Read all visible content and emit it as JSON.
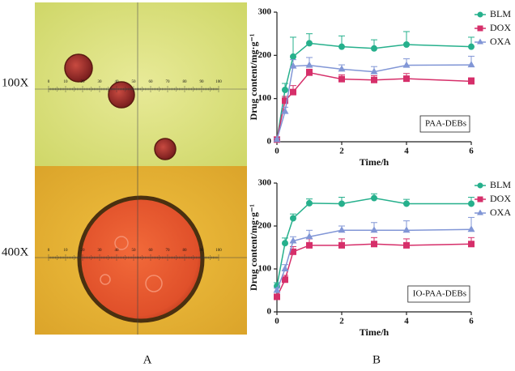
{
  "figure": {
    "magnifications": [
      "100X",
      "400X"
    ],
    "panel_labels": [
      "A",
      "B"
    ],
    "ruler_labels": [
      "0",
      "10",
      "20",
      "30",
      "40",
      "50",
      "60",
      "70",
      "80",
      "90",
      "100"
    ]
  },
  "chart_data": [
    {
      "type": "line",
      "annotation": "PAA-DEBs",
      "xlabel": "Time/h",
      "ylabel": "Drug content/mg·g⁻¹",
      "x": [
        0,
        0.25,
        0.5,
        1,
        2,
        3,
        4,
        6
      ],
      "xlim": [
        0,
        6
      ],
      "xticks": [
        0,
        2,
        4,
        6
      ],
      "ylim": [
        0,
        300
      ],
      "yticks": [
        0,
        100,
        200,
        300
      ],
      "legend": "upper right",
      "series": [
        {
          "name": "BLM",
          "color": "#26b08c",
          "marker": "circle",
          "values": [
            5,
            120,
            197,
            228,
            220,
            216,
            225,
            220
          ],
          "errors": [
            3,
            15,
            45,
            22,
            25,
            20,
            30,
            22
          ]
        },
        {
          "name": "DOX",
          "color": "#d62f6a",
          "marker": "square",
          "values": [
            5,
            95,
            115,
            160,
            145,
            143,
            146,
            140
          ],
          "errors": [
            3,
            10,
            15,
            8,
            10,
            10,
            12,
            8
          ]
        },
        {
          "name": "OXA",
          "color": "#8196d6",
          "marker": "triangle",
          "values": [
            5,
            70,
            175,
            177,
            168,
            162,
            177,
            178
          ],
          "errors": [
            3,
            10,
            15,
            18,
            10,
            12,
            15,
            20
          ]
        }
      ]
    },
    {
      "type": "line",
      "annotation": "IO-PAA-DEBs",
      "xlabel": "Time/h",
      "ylabel": "Drug content/mg·g⁻¹",
      "x": [
        0,
        0.25,
        0.5,
        1,
        2,
        3,
        4,
        6
      ],
      "xlim": [
        0,
        6
      ],
      "xticks": [
        0,
        2,
        4,
        6
      ],
      "ylim": [
        0,
        300
      ],
      "yticks": [
        0,
        100,
        200,
        300
      ],
      "legend": "upper right",
      "series": [
        {
          "name": "BLM",
          "color": "#26b08c",
          "marker": "circle",
          "values": [
            60,
            160,
            218,
            253,
            252,
            265,
            252,
            252
          ],
          "errors": [
            8,
            12,
            10,
            10,
            15,
            10,
            10,
            15
          ]
        },
        {
          "name": "DOX",
          "color": "#d62f6a",
          "marker": "square",
          "values": [
            35,
            75,
            140,
            155,
            155,
            158,
            155,
            158
          ],
          "errors": [
            5,
            10,
            12,
            15,
            15,
            15,
            15,
            15
          ]
        },
        {
          "name": "OXA",
          "color": "#8196d6",
          "marker": "triangle",
          "values": [
            50,
            100,
            165,
            175,
            190,
            190,
            190,
            192
          ],
          "errors": [
            5,
            10,
            10,
            15,
            10,
            18,
            22,
            28
          ]
        }
      ]
    }
  ]
}
